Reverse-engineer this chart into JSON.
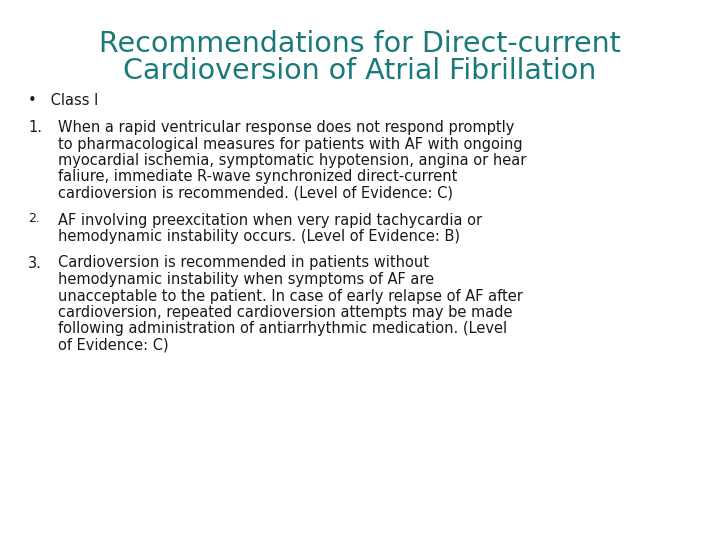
{
  "title_line1": "Recommendations for Direct-current",
  "title_line2": "Cardioversion of Atrial Fibrillation",
  "title_color": "#1a7a7a",
  "background_color": "#ffffff",
  "text_color": "#1a1a1a",
  "body_fontsize": 10.5,
  "title_fontsize": 20.5,
  "font_family": "DejaVu Sans",
  "bullet": "•   Class I",
  "item1_num": "1.",
  "item1_lines": [
    "When a rapid ventricular response does not respond promptly",
    "to pharmacological measures for patients with AF with ongoing",
    "myocardial ischemia, symptomatic hypotension, angina or hear",
    "faliure, immediate R-wave synchronized direct-current",
    "cardioversion is recommended. (Level of Evidence: C)"
  ],
  "item2_num": "2.",
  "item2_lines": [
    "AF involving preexcitation when very rapid tachycardia or",
    "hemodynamic instability occurs. (Level of Evidence: B)"
  ],
  "item3_num": "3.",
  "item3_lines": [
    "Cardioversion is recommended in patients without",
    "hemodynamic instability when symptoms of AF are",
    "unacceptable to the patient. In case of early relapse of AF after",
    "cardioversion, repeated cardioversion attempts may be made",
    "following administration of antiarrhythmic medication. (Level",
    "of Evidence: C)"
  ]
}
